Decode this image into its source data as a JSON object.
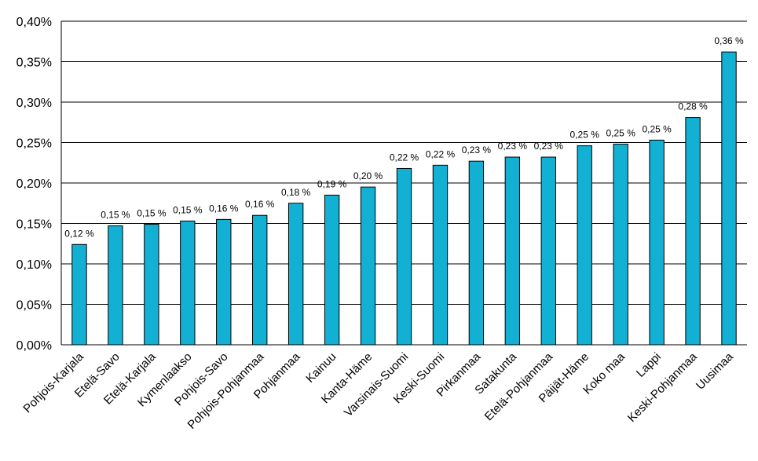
{
  "chart_data": {
    "type": "bar",
    "title": "",
    "xlabel": "",
    "ylabel": "",
    "ylim": [
      0,
      0.4
    ],
    "yticks": [
      "0,00%",
      "0,05%",
      "0,10%",
      "0,15%",
      "0,20%",
      "0,25%",
      "0,30%",
      "0,35%",
      "0,40%"
    ],
    "grid": true,
    "bar_color": "#12B0D2",
    "categories": [
      "Pohjois-Karjala",
      "Etelä-Savo",
      "Etelä-Karjala",
      "Kymenlaakso",
      "Pohjois-Savo",
      "Pohjois-Pohjanmaa",
      "Pohjanmaa",
      "Kainuu",
      "Kanta-Häme",
      "Varsinais-Suomi",
      "Keski-Suomi",
      "Pirkanmaa",
      "Satakunta",
      "Etelä-Pohjanmaa",
      "Päijät-Häme",
      "Koko maa",
      "Lappi",
      "Keski-Pohjanmaa",
      "Uusimaa"
    ],
    "values": [
      0.124,
      0.147,
      0.149,
      0.153,
      0.155,
      0.16,
      0.175,
      0.185,
      0.195,
      0.218,
      0.222,
      0.227,
      0.232,
      0.232,
      0.246,
      0.248,
      0.253,
      0.281,
      0.362
    ],
    "data_labels": [
      "0,12 %",
      "0,15 %",
      "0,15 %",
      "0,15 %",
      "0,16 %",
      "0,16 %",
      "0,18 %",
      "0,19 %",
      "0,20 %",
      "0,22 %",
      "0,22 %",
      "0,23 %",
      "0,23 %",
      "0,23 %",
      "0,25 %",
      "0,25 %",
      "0,25 %",
      "0,28 %",
      "0,36 %"
    ]
  }
}
